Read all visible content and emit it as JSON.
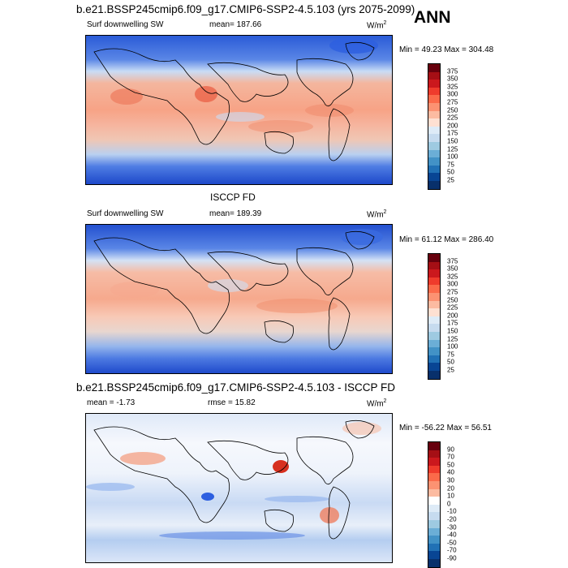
{
  "figure": {
    "season": "ANN"
  },
  "panels": [
    {
      "title": "b.e21.BSSP245cmip6.f09_g17.CMIP6-SSP2-4.5.103 (yrs 2075-2099)",
      "left_label": "Surf downwelling SW",
      "center_label": "mean= 187.66",
      "units": "W/m",
      "units_sup": "2",
      "minmax": "Min =  49.23 Max = 304.48",
      "colorbar_labels": [
        "375",
        "350",
        "325",
        "300",
        "275",
        "250",
        "225",
        "200",
        "175",
        "150",
        "125",
        "100",
        "75",
        "50",
        "25"
      ],
      "colors": [
        "#67000d",
        "#a50f15",
        "#cb181d",
        "#ef3b2c",
        "#fb6a4a",
        "#fc9272",
        "#fcbba1",
        "#fee0d2",
        "#deebf7",
        "#c6dbef",
        "#9ecae1",
        "#6baed6",
        "#4292c6",
        "#2171b5",
        "#084594",
        "#08306b"
      ]
    },
    {
      "title": "ISCCP FD",
      "left_label": "Surf downwelling SW",
      "center_label": "mean= 189.39",
      "units": "W/m",
      "units_sup": "2",
      "minmax": "Min =  61.12 Max = 286.40",
      "colorbar_labels": [
        "375",
        "350",
        "325",
        "300",
        "275",
        "250",
        "225",
        "200",
        "175",
        "150",
        "125",
        "100",
        "75",
        "50",
        "25"
      ],
      "colors": [
        "#67000d",
        "#a50f15",
        "#cb181d",
        "#ef3b2c",
        "#fb6a4a",
        "#fc9272",
        "#fcbba1",
        "#fee0d2",
        "#deebf7",
        "#c6dbef",
        "#9ecae1",
        "#6baed6",
        "#4292c6",
        "#2171b5",
        "#084594",
        "#08306b"
      ]
    },
    {
      "title": "b.e21.BSSP245cmip6.f09_g17.CMIP6-SSP2-4.5.103 - ISCCP FD",
      "left_label": "mean =  -1.73",
      "center_label": "rmse =  15.82",
      "units": "W/m",
      "units_sup": "2",
      "minmax": "Min = -56.22 Max =  56.51",
      "colorbar_labels": [
        "90",
        "70",
        "50",
        "40",
        "30",
        "20",
        "10",
        "0",
        "-10",
        "-20",
        "-30",
        "-40",
        "-50",
        "-70",
        "-90"
      ],
      "colors": [
        "#67000d",
        "#a50f15",
        "#cb181d",
        "#ef3b2c",
        "#fb6a4a",
        "#fc9272",
        "#fcbba1",
        "#ffffff",
        "#deebf7",
        "#c6dbef",
        "#9ecae1",
        "#6baed6",
        "#4292c6",
        "#2171b5",
        "#084594",
        "#08306b"
      ]
    }
  ]
}
